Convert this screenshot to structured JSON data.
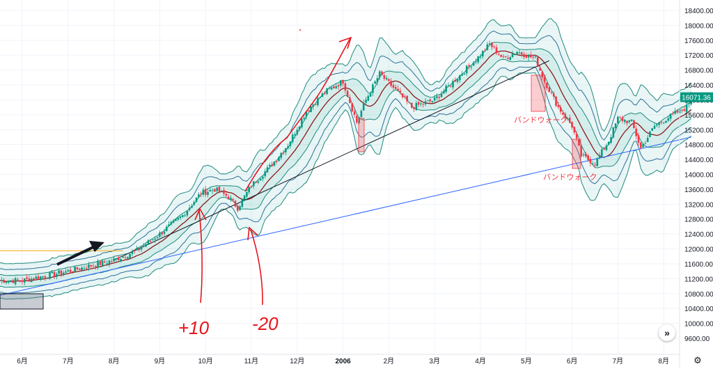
{
  "chart_data": {
    "type": "line",
    "description_series": "Candlestick price series with Bollinger Bands (middle, ±1σ, ±2σ, ±3σ)",
    "x_tick_labels": [
      "6月",
      "7月",
      "8月",
      "9月",
      "10月",
      "11月",
      "12月",
      "2006",
      "2月",
      "3月",
      "4月",
      "5月",
      "6月",
      "7月",
      "8月"
    ],
    "y_tick_labels": [
      "18400.00",
      "18000.00",
      "17600.00",
      "17200.00",
      "16800.00",
      "16400.00",
      "16000.00",
      "15600.00",
      "15200.00",
      "14800.00",
      "14400.00",
      "14000.00",
      "13600.00",
      "13200.00",
      "12800.00",
      "12400.00",
      "12000.00",
      "11600.00",
      "11200.00",
      "10800.00",
      "10400.00",
      "10000.00",
      "9600.00"
    ],
    "ylim": [
      9400,
      18600
    ],
    "last_price_label": "16071.36",
    "close_path": [
      {
        "t": 0.0,
        "v": 11150
      },
      {
        "t": 0.4,
        "v": 11250
      },
      {
        "t": 1.0,
        "v": 11400
      },
      {
        "t": 1.5,
        "v": 11550
      },
      {
        "t": 2.0,
        "v": 11700
      },
      {
        "t": 2.5,
        "v": 11950
      },
      {
        "t": 3.0,
        "v": 12400
      },
      {
        "t": 3.5,
        "v": 12900
      },
      {
        "t": 3.9,
        "v": 13500
      },
      {
        "t": 4.2,
        "v": 13600
      },
      {
        "t": 4.5,
        "v": 13400
      },
      {
        "t": 4.7,
        "v": 13100
      },
      {
        "t": 5.0,
        "v": 13700
      },
      {
        "t": 5.4,
        "v": 14200
      },
      {
        "t": 5.8,
        "v": 14800
      },
      {
        "t": 6.2,
        "v": 15700
      },
      {
        "t": 6.6,
        "v": 16200
      },
      {
        "t": 7.0,
        "v": 16500
      },
      {
        "t": 7.3,
        "v": 15400
      },
      {
        "t": 7.5,
        "v": 16000
      },
      {
        "t": 7.8,
        "v": 16700
      },
      {
        "t": 8.2,
        "v": 16200
      },
      {
        "t": 8.5,
        "v": 15800
      },
      {
        "t": 9.0,
        "v": 16000
      },
      {
        "t": 9.5,
        "v": 16600
      },
      {
        "t": 10.0,
        "v": 17200
      },
      {
        "t": 10.2,
        "v": 17500
      },
      {
        "t": 10.5,
        "v": 17100
      },
      {
        "t": 10.8,
        "v": 17300
      },
      {
        "t": 11.2,
        "v": 17100
      },
      {
        "t": 11.4,
        "v": 16500
      },
      {
        "t": 11.7,
        "v": 15800
      },
      {
        "t": 12.0,
        "v": 15300
      },
      {
        "t": 12.2,
        "v": 14500
      },
      {
        "t": 12.5,
        "v": 14300
      },
      {
        "t": 12.8,
        "v": 14900
      },
      {
        "t": 13.0,
        "v": 15500
      },
      {
        "t": 13.3,
        "v": 15400
      },
      {
        "t": 13.5,
        "v": 14700
      },
      {
        "t": 13.8,
        "v": 15300
      },
      {
        "t": 14.2,
        "v": 15600
      },
      {
        "t": 14.5,
        "v": 15800
      },
      {
        "t": 14.6,
        "v": 16071.36
      }
    ],
    "bollinger_sigma_offset": 280,
    "trend_lines": [
      {
        "name": "blue-support",
        "from": {
          "t": -0.5,
          "v": 10750
        },
        "to": {
          "t": 14.6,
          "v": 15000
        },
        "color": "#2962ff"
      },
      {
        "name": "black-trend",
        "from": {
          "t": 2.0,
          "v": 11700
        },
        "to": {
          "t": 11.5,
          "v": 17050
        },
        "color": "#131722"
      }
    ],
    "horizontal_line": {
      "v": 11950,
      "t_end": 2.2,
      "color": "#f7a600"
    },
    "grid": true,
    "up_color": "#089981",
    "down_color": "#f23645"
  },
  "annotations": {
    "handwritten_1": "+10",
    "handwritten_2": "-20",
    "band_walk_1": "バンドウォーク",
    "band_walk_2": "バンドウォーク"
  },
  "buttons": {
    "scroll_right": "»",
    "settings": "⚙"
  }
}
